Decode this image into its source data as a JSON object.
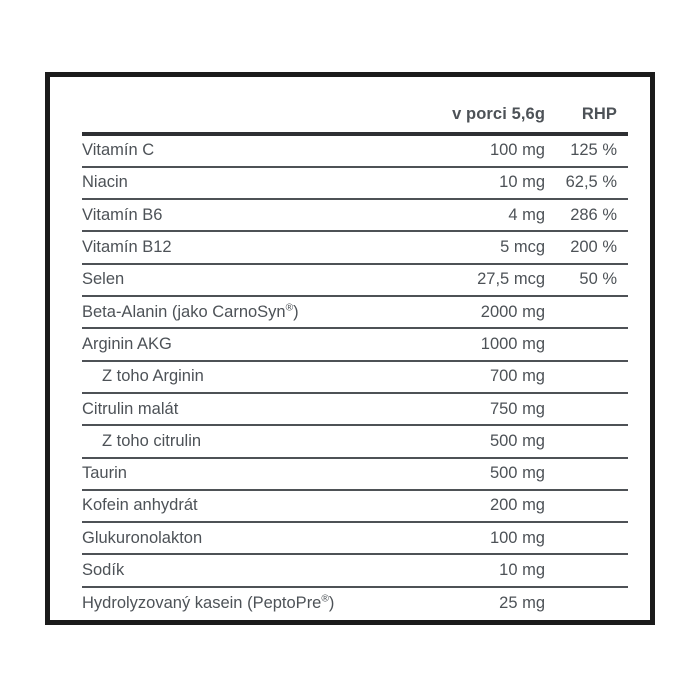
{
  "colors": {
    "border_color": "#1b1b1b",
    "header_rule_color": "#2e3033",
    "row_rule_color": "#4e5256",
    "text_color": "#4d5257",
    "header_text_color": "#3d4247",
    "bg_color": "#ffffff"
  },
  "table": {
    "header": {
      "amount_label": "v porci 5,6g",
      "rhp_label": "RHP"
    },
    "rows": [
      {
        "label": "Vitamín C",
        "amount": "100 mg",
        "rhp": "125 %",
        "indent": false
      },
      {
        "label": "Niacin",
        "amount": "10 mg",
        "rhp": "62,5 %",
        "indent": false
      },
      {
        "label": "Vitamín B6",
        "amount": "4 mg",
        "rhp": "286 %",
        "indent": false
      },
      {
        "label": "Vitamín B12",
        "amount": "5 mcg",
        "rhp": "200 %",
        "indent": false
      },
      {
        "label": "Selen",
        "amount": "27,5 mcg",
        "rhp": "50 %",
        "indent": false
      },
      {
        "label": "Beta-Alanin (jako CarnoSyn®)",
        "amount": "2000 mg",
        "rhp": "",
        "indent": false
      },
      {
        "label": "Arginin AKG",
        "amount": "1000 mg",
        "rhp": "",
        "indent": false
      },
      {
        "label": "Z toho Arginin",
        "amount": "700 mg",
        "rhp": "",
        "indent": true
      },
      {
        "label": "Citrulin malát",
        "amount": "750 mg",
        "rhp": "",
        "indent": false
      },
      {
        "label": "Z toho citrulin",
        "amount": "500 mg",
        "rhp": "",
        "indent": true
      },
      {
        "label": "Taurin",
        "amount": "500 mg",
        "rhp": "",
        "indent": false
      },
      {
        "label": "Kofein anhydrát",
        "amount": "200 mg",
        "rhp": "",
        "indent": false
      },
      {
        "label": "Glukuronolakton",
        "amount": "100 mg",
        "rhp": "",
        "indent": false
      },
      {
        "label": "Sodík",
        "amount": "10 mg",
        "rhp": "",
        "indent": false
      },
      {
        "label": "Hydrolyzovaný kasein (PeptoPre®)",
        "amount": "25 mg",
        "rhp": "",
        "indent": false
      }
    ]
  }
}
